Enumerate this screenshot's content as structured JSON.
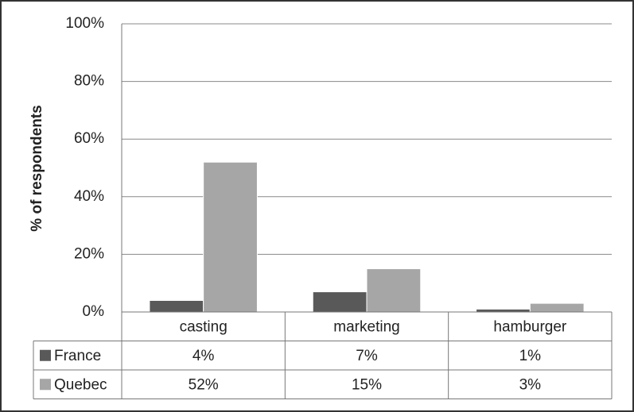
{
  "chart_data": {
    "type": "bar",
    "y_label": "% of respondents",
    "categories": [
      "casting",
      "marketing",
      "hamburger"
    ],
    "series": [
      {
        "name": "France",
        "color": "#595959",
        "values": [
          4,
          7,
          1
        ],
        "value_labels": [
          "4%",
          "7%",
          "1%"
        ]
      },
      {
        "name": "Quebec",
        "color": "#a6a6a6",
        "values": [
          52,
          15,
          3
        ],
        "value_labels": [
          "52%",
          "15%",
          "3%"
        ]
      }
    ],
    "ylim": [
      0,
      100
    ],
    "yticks": [
      {
        "value": 0,
        "label": "0%"
      },
      {
        "value": 20,
        "label": "20%"
      },
      {
        "value": 40,
        "label": "40%"
      },
      {
        "value": 60,
        "label": "60%"
      },
      {
        "value": 80,
        "label": "80%"
      },
      {
        "value": 100,
        "label": "100%"
      }
    ],
    "grid": true
  }
}
